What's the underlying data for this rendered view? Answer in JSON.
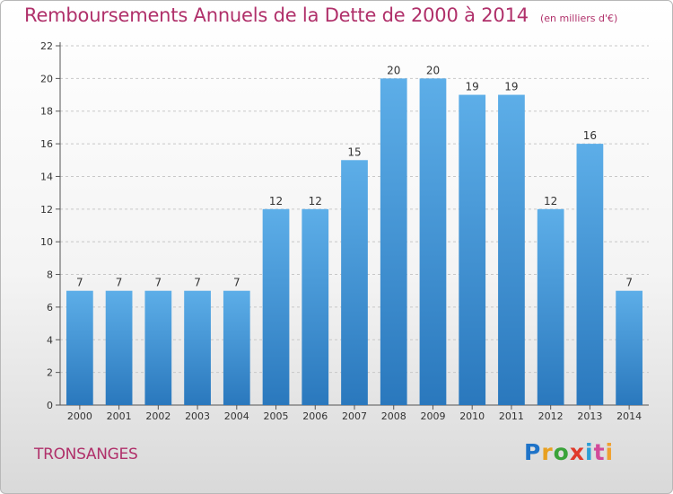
{
  "chart_data": {
    "type": "bar",
    "title": "Remboursements Annuels de la Dette de 2000 à 2014",
    "subtitle": "(en milliers d'€)",
    "categories": [
      "2000",
      "2001",
      "2002",
      "2003",
      "2004",
      "2005",
      "2006",
      "2007",
      "2008",
      "2009",
      "2010",
      "2011",
      "2012",
      "2013",
      "2014"
    ],
    "values": [
      7,
      7,
      7,
      7,
      7,
      12,
      12,
      15,
      20,
      20,
      19,
      19,
      12,
      16,
      7
    ],
    "ylim": [
      0,
      22
    ],
    "yticks": [
      0,
      2,
      4,
      6,
      8,
      10,
      12,
      14,
      16,
      18,
      20,
      22
    ],
    "grid": true,
    "data_labels": true,
    "colors": {
      "bar_top": "#5daee8",
      "bar_bottom": "#2a78bd",
      "grid": "#c8c8c8",
      "accent": "#b0306a"
    }
  },
  "footer": {
    "commune": "TRONSANGES",
    "logo": "Proxiti"
  }
}
